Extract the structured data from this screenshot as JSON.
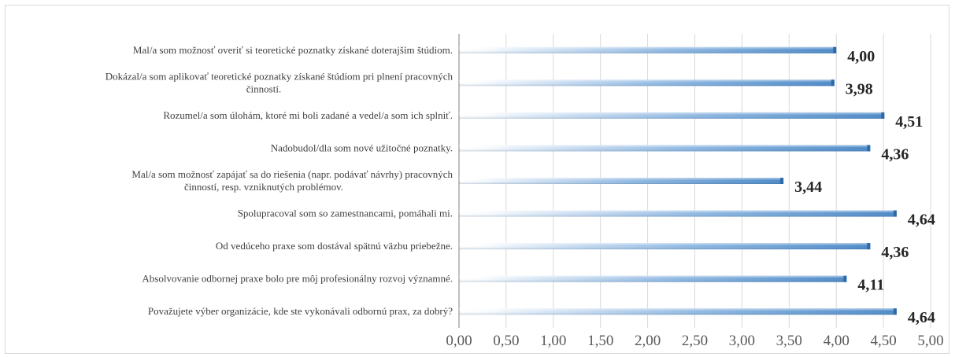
{
  "chart_data": {
    "type": "bar",
    "orientation": "horizontal",
    "categories": [
      [
        "Mal/a som možnosť overiť si teoretické poznatky získané doterajším štúdiom."
      ],
      [
        "Dokázal/a som aplikovať teoretické poznatky získané štúdiom pri plnení pracovných",
        "činností."
      ],
      [
        "Rozumel/a som úlohám, ktoré mi boli zadané a vedel/a som ich splniť."
      ],
      [
        "Nadobudol/dla som nové užitočné poznatky."
      ],
      [
        "Mal/a som možnosť zapájať sa do riešenia (napr. podávať návrhy) pracovných",
        "činností, resp. vzniknutých problémov."
      ],
      [
        "Spolupracoval som so zamestnancami, pomáhali mi."
      ],
      [
        "Od vedúceho praxe som dostával spätnú väzbu priebežne."
      ],
      [
        "Absolvovanie odbornej praxe bolo pre môj profesionálny rozvoj významné."
      ],
      [
        "Považujete výber organizácie, kde ste vykonávali odbornú prax, za dobrý?"
      ]
    ],
    "values": [
      4.0,
      3.98,
      4.51,
      4.36,
      3.44,
      4.64,
      4.36,
      4.11,
      4.64
    ],
    "data_labels": [
      "4,00",
      "3,98",
      "4,51",
      "4,36",
      "3,44",
      "4,64",
      "4,36",
      "4,11",
      "4,64"
    ],
    "x_ticks": [
      "0,00",
      "0,50",
      "1,00",
      "1,50",
      "2,00",
      "2,50",
      "3,00",
      "3,50",
      "4,00",
      "4,50",
      "5,00"
    ],
    "xlim": [
      0,
      5
    ],
    "grid": true,
    "bar_color": "#5b9bd5",
    "bar_gradient": true,
    "legend": "none"
  }
}
